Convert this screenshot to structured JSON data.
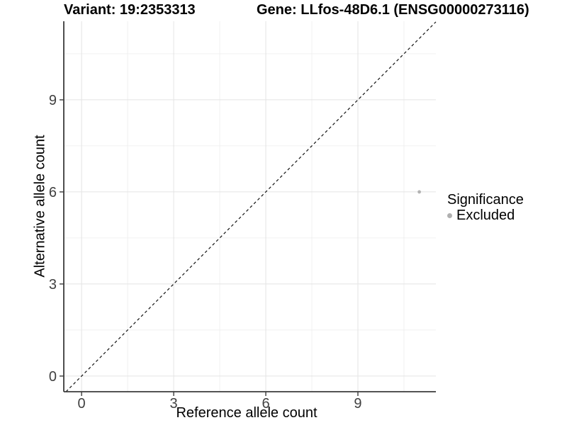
{
  "chart_data": {
    "type": "scatter",
    "title_left": "Variant: 19:2353313",
    "title_right": "Gene: LLfos-48D6.1 (ENSG00000273116)",
    "xlabel": "Reference allele count",
    "ylabel": "Alternative allele count",
    "xlim": [
      -0.58,
      11.54
    ],
    "ylim": [
      -0.51,
      11.56
    ],
    "x_ticks": [
      0,
      3,
      6,
      9
    ],
    "y_ticks": [
      0,
      3,
      6,
      9
    ],
    "x_minor_gridlines": [
      1.5,
      4.5,
      7.5,
      10.5
    ],
    "y_minor_gridlines": [
      1.5,
      4.5,
      7.5,
      10.5
    ],
    "grid": true,
    "identity_line": {
      "slope": 1,
      "intercept": 0,
      "style": "dashed",
      "color": "#111111"
    },
    "series": [
      {
        "name": "Excluded",
        "color": "#b3b3b3",
        "points": [
          {
            "x": 11,
            "y": 6
          }
        ]
      }
    ],
    "legend": {
      "title": "Significance",
      "position": "right",
      "items": [
        {
          "label": "Excluded",
          "color": "#b0b0b0"
        }
      ]
    }
  },
  "colors": {
    "axis_line": "#3b3b3b",
    "tick_mark": "#3b3b3b",
    "tick_label": "#404040",
    "grid_major": "#e4e4e4",
    "grid_minor": "#f0f0f0",
    "background": "#ffffff"
  }
}
